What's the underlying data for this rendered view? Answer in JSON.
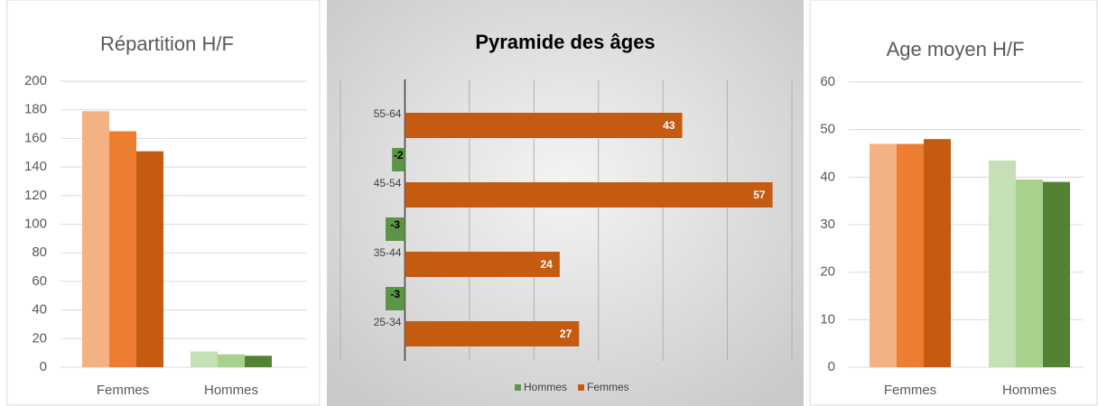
{
  "chart_data": [
    {
      "type": "bar",
      "title": "Répartition H/F",
      "categories": [
        "Femmes",
        "Hommes"
      ],
      "series": [
        {
          "colors": [
            "#f4b183",
            "#c5e0b4"
          ],
          "values": [
            179,
            11
          ]
        },
        {
          "colors": [
            "#ed7d31",
            "#a9d18e"
          ],
          "values": [
            165,
            9
          ]
        },
        {
          "colors": [
            "#c55a11",
            "#548235"
          ],
          "values": [
            151,
            8
          ]
        }
      ],
      "ylim": [
        0,
        200
      ],
      "yticks": [
        0,
        20,
        40,
        60,
        80,
        100,
        120,
        140,
        160,
        180,
        200
      ],
      "grid": true
    },
    {
      "type": "barh",
      "title": "Pyramide des âges",
      "categories": [
        "55-64",
        "45-54",
        "35-44",
        "25-34"
      ],
      "series": [
        {
          "name": "Hommes",
          "color": "#5e9447",
          "values": [
            null,
            -2,
            -3,
            -3
          ]
        },
        {
          "name": "Femmes",
          "color": "#c55a11",
          "values": [
            43,
            57,
            24,
            27
          ]
        }
      ],
      "xlim": [
        -10,
        60
      ],
      "xticks": [
        -10,
        0,
        10,
        20,
        30,
        40,
        50,
        60
      ],
      "grid": true,
      "legend": "bottom"
    },
    {
      "type": "bar",
      "title": "Age moyen H/F",
      "categories": [
        "Femmes",
        "Hommes"
      ],
      "series": [
        {
          "colors": [
            "#f4b183",
            "#c5e0b4"
          ],
          "values": [
            47,
            43.5
          ]
        },
        {
          "colors": [
            "#ed7d31",
            "#a9d18e"
          ],
          "values": [
            47,
            39.5
          ]
        },
        {
          "colors": [
            "#c55a11",
            "#548235"
          ],
          "values": [
            48,
            39
          ]
        }
      ],
      "ylim": [
        0,
        60
      ],
      "yticks": [
        0,
        10,
        20,
        30,
        40,
        50,
        60
      ],
      "grid": true
    }
  ]
}
